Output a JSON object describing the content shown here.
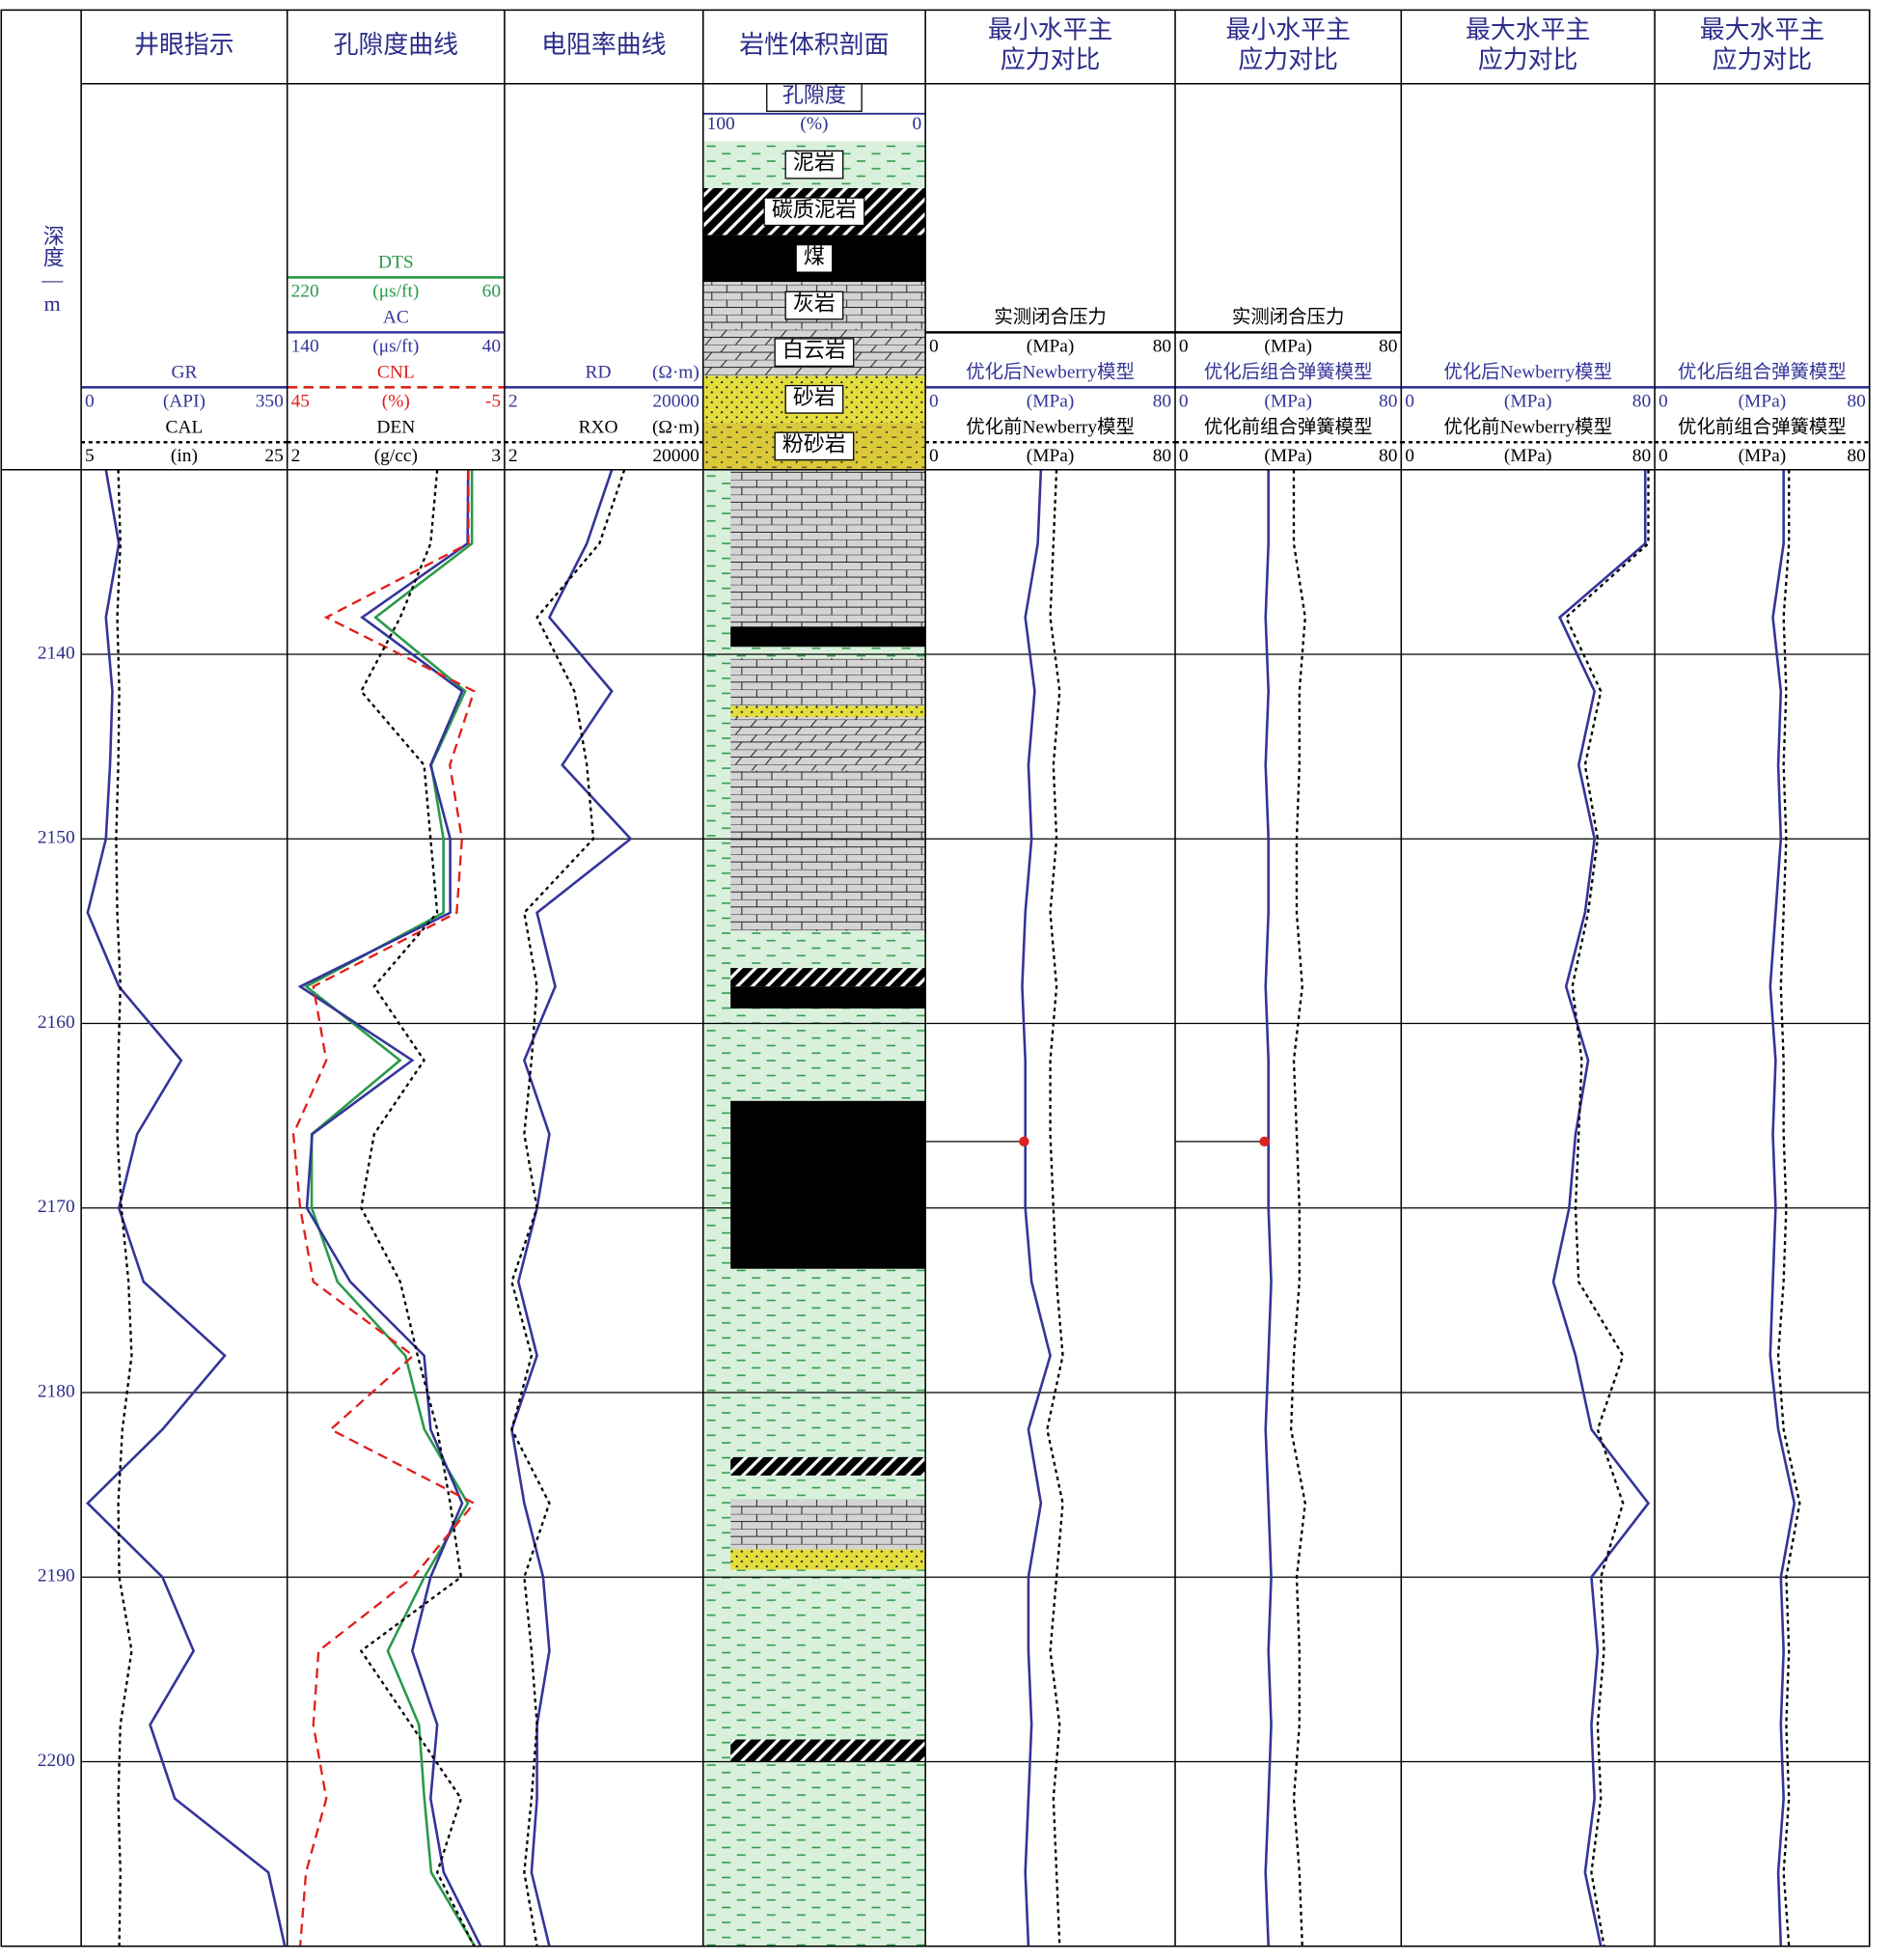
{
  "chart_data": {
    "type": "well_log",
    "depth_label": "深度—m",
    "ylim": [
      2130,
      2210
    ],
    "yticks": [
      2140,
      2150,
      2160,
      2170,
      2180,
      2190,
      2200
    ],
    "depth": [
      2130,
      2134,
      2138,
      2142,
      2146,
      2150,
      2154,
      2158,
      2162,
      2166,
      2170,
      2174,
      2178,
      2182,
      2186,
      2190,
      2194,
      2198,
      2202,
      2206,
      2210
    ],
    "tracks": [
      {
        "title": [
          "井眼指示"
        ],
        "curves": [
          {
            "name": "GR",
            "unit": "(API)",
            "range": [
              0,
              350
            ],
            "color": "#34349a",
            "style": "solid",
            "values": [
              42,
              64,
              42,
              53,
              49,
              42,
              11,
              64,
              170,
              95,
              64,
              106,
              244,
              138,
              11,
              138,
              191,
              117,
              159,
              318,
              346
            ]
          },
          {
            "name": "CAL",
            "unit": "(in)",
            "range": [
              5,
              25
            ],
            "color": "#000000",
            "style": "dotted",
            "values": [
              8.6,
              8.8,
              8.5,
              8.7,
              8.6,
              8.4,
              8.5,
              8.8,
              8.6,
              8.5,
              8.9,
              9.6,
              9.9,
              9.0,
              8.6,
              8.7,
              9.9,
              8.8,
              8.6,
              8.8,
              8.7
            ]
          }
        ]
      },
      {
        "title": [
          "孔隙度曲线"
        ],
        "curves": [
          {
            "name": "DTS",
            "unit": "(μs/ft)",
            "range": [
              220,
              60
            ],
            "color": "#2a9a4a",
            "style": "solid",
            "values": [
              84,
              84,
              155,
              89,
              114,
              105,
              105,
              206,
              137,
              202,
              202,
              183,
              133,
              119,
              87,
              119,
              146,
              123,
              119,
              114,
              82
            ]
          },
          {
            "name": "AC",
            "unit": "(μs/ft)",
            "range": [
              140,
              40
            ],
            "color": "#34349a",
            "style": "solid",
            "values": [
              56.7,
              57,
              105.5,
              59.5,
              74,
              65,
              65,
              134,
              82.5,
              128.5,
              131,
              111,
              77,
              74,
              59.5,
              74,
              82.5,
              71,
              74,
              68,
              51
            ]
          },
          {
            "name": "CNL",
            "unit": "(%)",
            "range": [
              45,
              -5
            ],
            "color": "#e0201c",
            "style": "dashed",
            "values": [
              3.3,
              3.3,
              36,
              2,
              7.6,
              4.8,
              6,
              39,
              36,
              43.6,
              42,
              39,
              16,
              35,
              2,
              16,
              37.8,
              39,
              36,
              40.7,
              42
            ]
          },
          {
            "name": "DEN",
            "unit": "(g/cc)",
            "range": [
              2,
              3
            ],
            "color": "#000000",
            "style": "dotted",
            "values": [
              2.69,
              2.66,
              2.52,
              2.34,
              2.63,
              2.66,
              2.69,
              2.4,
              2.63,
              2.4,
              2.34,
              2.52,
              2.6,
              2.69,
              2.75,
              2.8,
              2.34,
              2.57,
              2.8,
              2.69,
              2.86
            ]
          }
        ]
      },
      {
        "title": [
          "电阻率曲线"
        ],
        "scale": "log",
        "curves": [
          {
            "name": "RD",
            "unit": "(Ω·m)",
            "range": [
              2,
              20000
            ],
            "color": "#34349a",
            "style": "solid",
            "values": [
              289,
              91,
              16,
              289,
              29,
              695,
              9,
              21,
              5,
              16,
              9,
              3.8,
              9,
              2.8,
              5,
              12,
              16,
              9,
              9,
              7,
              16
            ]
          },
          {
            "name": "RXO",
            "unit": "(Ω·m)",
            "range": [
              2,
              20000
            ],
            "color": "#000000",
            "style": "dotted",
            "values": [
              520,
              163,
              9,
              51,
              91,
              123,
              5,
              9,
              7,
              5,
              9,
              2.8,
              7,
              2.8,
              16,
              5,
              7,
              9,
              7,
              5,
              9
            ]
          }
        ]
      },
      {
        "title": [
          "岩性体积剖面"
        ],
        "porosity": {
          "name": "孔隙度",
          "unit": "(%)",
          "range": [
            100,
            0
          ]
        },
        "legend": [
          {
            "name": "泥岩",
            "pattern": "mud"
          },
          {
            "name": "碳质泥岩",
            "pattern": "carb"
          },
          {
            "name": "煤",
            "pattern": "coal"
          },
          {
            "name": "灰岩",
            "pattern": "lime"
          },
          {
            "name": "白云岩",
            "pattern": "dolo"
          },
          {
            "name": "砂岩",
            "pattern": "sand"
          },
          {
            "name": "粉砂岩",
            "pattern": "silt"
          }
        ],
        "layers": [
          {
            "top": 2130,
            "bottom": 2138.5,
            "lithology": "灰岩"
          },
          {
            "top": 2138.5,
            "bottom": 2139.6,
            "lithology": "煤"
          },
          {
            "top": 2139.6,
            "bottom": 2140.2,
            "lithology": "泥岩"
          },
          {
            "top": 2140.2,
            "bottom": 2142.8,
            "lithology": "灰岩"
          },
          {
            "top": 2142.8,
            "bottom": 2143.4,
            "lithology": "砂岩"
          },
          {
            "top": 2143.4,
            "bottom": 2146.3,
            "lithology": "白云岩"
          },
          {
            "top": 2146.3,
            "bottom": 2155,
            "lithology": "灰岩"
          },
          {
            "top": 2155,
            "bottom": 2157,
            "lithology": "泥岩"
          },
          {
            "top": 2157,
            "bottom": 2158,
            "lithology": "碳质泥岩"
          },
          {
            "top": 2158,
            "bottom": 2159.2,
            "lithology": "煤"
          },
          {
            "top": 2159.2,
            "bottom": 2164.2,
            "lithology": "泥岩"
          },
          {
            "top": 2164.2,
            "bottom": 2173.3,
            "lithology": "煤"
          },
          {
            "top": 2173.3,
            "bottom": 2183.5,
            "lithology": "泥岩"
          },
          {
            "top": 2183.5,
            "bottom": 2184.5,
            "lithology": "碳质泥岩"
          },
          {
            "top": 2184.5,
            "bottom": 2185.8,
            "lithology": "泥岩"
          },
          {
            "top": 2185.8,
            "bottom": 2188.5,
            "lithology": "灰岩"
          },
          {
            "top": 2188.5,
            "bottom": 2189.6,
            "lithology": "砂岩"
          },
          {
            "top": 2189.6,
            "bottom": 2198.8,
            "lithology": "泥岩"
          },
          {
            "top": 2198.8,
            "bottom": 2200,
            "lithology": "碳质泥岩"
          },
          {
            "top": 2200,
            "bottom": 2210,
            "lithology": "泥岩"
          }
        ]
      },
      {
        "title": [
          "最小水平主",
          "应力对比"
        ],
        "measured": {
          "name": "实测闭合压力",
          "unit": "(MPa)",
          "range": [
            0,
            80
          ],
          "color": "#000000",
          "depth": 2166.4,
          "value": 31.6
        },
        "curves": [
          {
            "name": "优化后Newberry模型",
            "unit": "(MPa)",
            "range": [
              0,
              80
            ],
            "color": "#34349a",
            "style": "solid",
            "values": [
              37,
              36,
              32,
              35,
              33,
              34,
              32,
              31,
              32,
              32,
              32,
              34,
              40,
              33,
              37,
              33,
              33,
              34,
              33,
              32,
              33
            ]
          },
          {
            "name": "优化前Newberry模型",
            "unit": "(MPa)",
            "range": [
              0,
              80
            ],
            "color": "#000000",
            "style": "dotted",
            "values": [
              42,
              41,
              40,
              43,
              41,
              42,
              40,
              42,
              40,
              40,
              41,
              42,
              44,
              39,
              44,
              42,
              40,
              43,
              41,
              42,
              43
            ]
          }
        ]
      },
      {
        "title": [
          "最小水平主",
          "应力对比"
        ],
        "measured": {
          "name": "实测闭合压力",
          "unit": "(MPa)",
          "range": [
            0,
            80
          ],
          "color": "#000000",
          "depth": 2166.4,
          "value": 31.6
        },
        "curves": [
          {
            "name": "优化后组合弹簧模型",
            "unit": "(MPa)",
            "range": [
              0,
              80
            ],
            "color": "#34349a",
            "style": "solid",
            "values": [
              33,
              33,
              32,
              33,
              32,
              33,
              33,
              32,
              33,
              33,
              33,
              34,
              33,
              32,
              33,
              34,
              33,
              34,
              33,
              32,
              33
            ]
          },
          {
            "name": "优化前组合弹簧模型",
            "unit": "(MPa)",
            "range": [
              0,
              80
            ],
            "color": "#000000",
            "style": "dotted",
            "values": [
              42,
              42,
              46,
              44,
              44,
              43,
              43,
              45,
              42,
              43,
              44,
              44,
              42,
              41,
              46,
              43,
              44,
              44,
              42,
              44,
              45
            ]
          }
        ]
      },
      {
        "title": [
          "最大水平主",
          "应力对比"
        ],
        "curves": [
          {
            "name": "优化后Newberry模型",
            "unit": "(MPa)",
            "range": [
              0,
              80
            ],
            "color": "#34349a",
            "style": "solid",
            "values": [
              77,
              77,
              50,
              61,
              56,
              61,
              58,
              52,
              59,
              55,
              53,
              48,
              55,
              60,
              78,
              60,
              62,
              60,
              61,
              58,
              63
            ]
          },
          {
            "name": "优化前Newberry模型",
            "unit": "(MPa)",
            "range": [
              0,
              80
            ],
            "color": "#000000",
            "style": "dotted",
            "values": [
              78,
              78,
              52,
              63,
              58,
              62,
              59,
              54,
              57,
              56,
              55,
              56,
              70,
              62,
              70,
              63,
              64,
              62,
              63,
              60,
              64
            ]
          }
        ]
      },
      {
        "title": [
          "最大水平主",
          "应力对比"
        ],
        "curves": [
          {
            "name": "优化后组合弹簧模型",
            "unit": "(MPa)",
            "range": [
              0,
              80
            ],
            "color": "#34349a",
            "style": "solid",
            "values": [
              48,
              48,
              44,
              47,
              46,
              47,
              45,
              43,
              45,
              44,
              45,
              44,
              43,
              46,
              52,
              47,
              48,
              47,
              48,
              46,
              47
            ]
          },
          {
            "name": "优化前组合弹簧模型",
            "unit": "(MPa)",
            "range": [
              0,
              80
            ],
            "color": "#000000",
            "style": "dotted",
            "values": [
              50,
              50,
              48,
              49,
              48,
              49,
              48,
              47,
              48,
              48,
              49,
              48,
              46,
              48,
              54,
              49,
              50,
              49,
              50,
              48,
              50
            ]
          }
        ]
      }
    ]
  }
}
